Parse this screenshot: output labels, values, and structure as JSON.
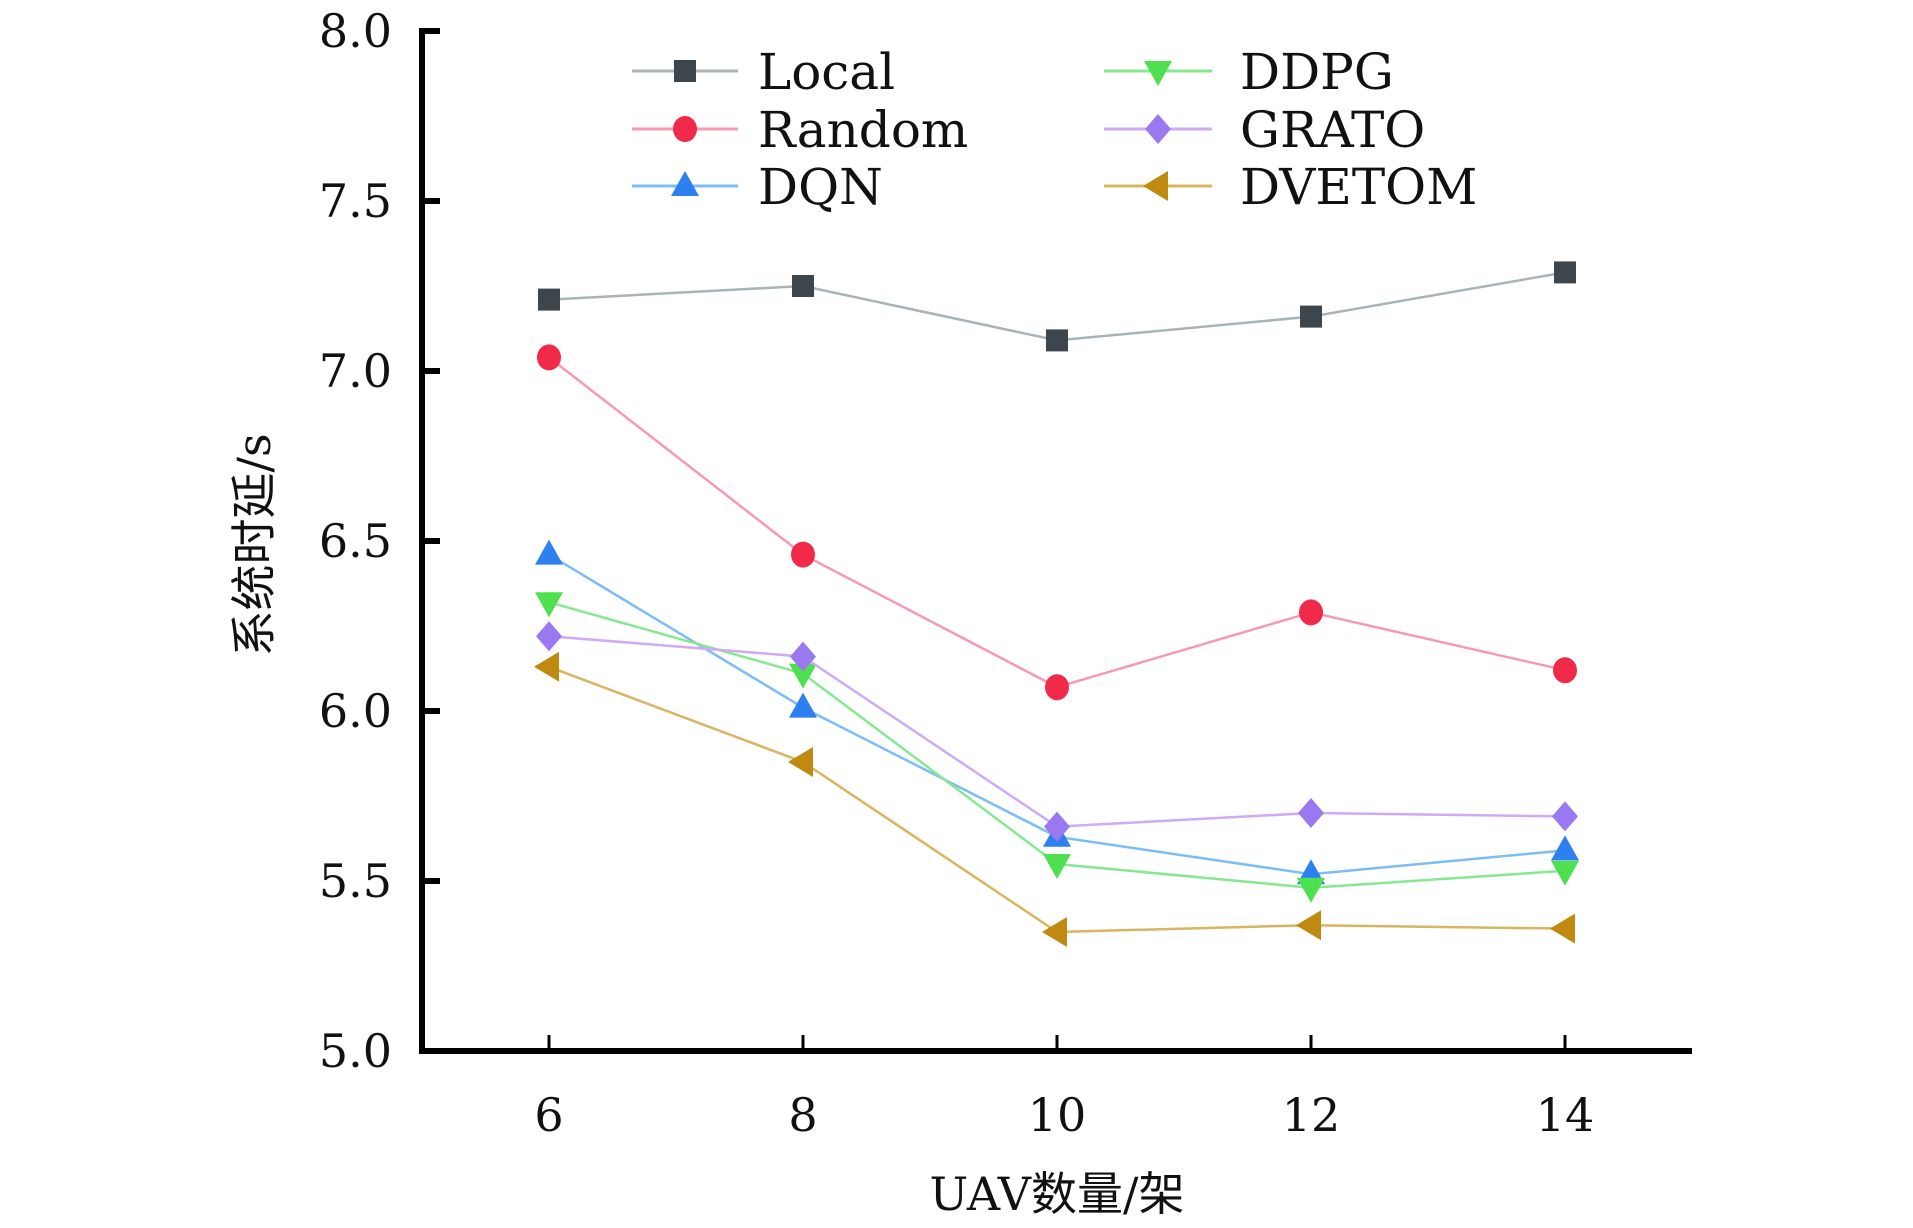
{
  "chart_data": {
    "type": "line",
    "title": "",
    "xlabel": "UAV数量/架",
    "ylabel": "系统时延/s",
    "x": [
      6,
      8,
      10,
      12,
      14
    ],
    "x_tick_labels": [
      "6",
      "8",
      "10",
      "12",
      "14"
    ],
    "y_ticks": [
      5.0,
      5.5,
      6.0,
      6.5,
      7.0,
      7.5,
      8.0
    ],
    "y_tick_labels": [
      "5.0",
      "5.5",
      "6.0",
      "6.5",
      "7.0",
      "7.5",
      "8.0"
    ],
    "xlim": [
      5,
      15
    ],
    "ylim": [
      5.0,
      8.0
    ],
    "grid": false,
    "legend_position": "top-center",
    "legend_columns": 2,
    "series": [
      {
        "name": "Local",
        "marker": "square",
        "marker_color": "#3d464d",
        "line_color": "#a7b4b8",
        "values": [
          7.21,
          7.25,
          7.09,
          7.16,
          7.29
        ]
      },
      {
        "name": "Random",
        "marker": "circle",
        "marker_color": "#f02a48",
        "line_color": "#f59ab0",
        "values": [
          7.04,
          6.46,
          6.07,
          6.29,
          6.12
        ]
      },
      {
        "name": "DQN",
        "marker": "triangle-up",
        "marker_color": "#2e7ff0",
        "line_color": "#7dbdf5",
        "values": [
          6.46,
          6.01,
          5.63,
          5.52,
          5.59
        ]
      },
      {
        "name": "DDPG",
        "marker": "triangle-down",
        "marker_color": "#4ee04e",
        "line_color": "#86e890",
        "values": [
          6.32,
          6.11,
          5.55,
          5.48,
          5.53
        ]
      },
      {
        "name": "GRATO",
        "marker": "diamond",
        "marker_color": "#9a78f0",
        "line_color": "#cfaaf5",
        "values": [
          6.22,
          6.16,
          5.66,
          5.7,
          5.69
        ]
      },
      {
        "name": "DVETOM",
        "marker": "triangle-left",
        "marker_color": "#c08a10",
        "line_color": "#d9b560",
        "values": [
          6.13,
          5.85,
          5.35,
          5.37,
          5.36
        ]
      }
    ]
  }
}
